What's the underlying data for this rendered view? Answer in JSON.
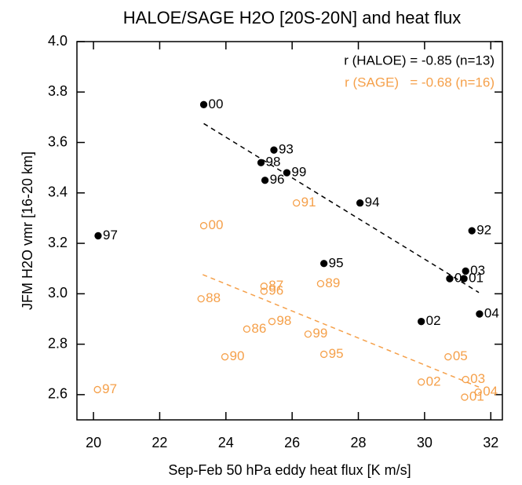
{
  "chart_data": {
    "type": "scatter",
    "title": "HALOE/SAGE H2O [20S-20N] and heat flux",
    "x_label": "Sep-Feb 50 hPa eddy heat flux [K m/s]",
    "y_label": "JFM H2O vmr [16-20 km]",
    "xlim": [
      19.5,
      32.35
    ],
    "ylim": [
      2.5,
      4.0
    ],
    "xticks": [
      20,
      22,
      24,
      26,
      28,
      30,
      32
    ],
    "yticks": [
      2.6,
      2.8,
      {
        "value": 3.0,
        "label": "3.0"
      },
      3.2,
      3.4,
      3.6,
      3.8,
      {
        "value": 4.0,
        "label": "4.0"
      }
    ],
    "annotations": [
      {
        "text": "r (HALOE) = -0.85 (n=13)",
        "color": "#000000"
      },
      {
        "text": "r (SAGE)   = -0.68 (n=16)",
        "color": "#f5a04a"
      }
    ],
    "series": [
      {
        "name": "HALOE",
        "color": "#000000",
        "marker": "filled",
        "x": [
          23.33,
          25.45,
          25.06,
          25.84,
          25.18,
          28.05,
          20.14,
          31.43,
          26.96,
          31.24,
          31.19,
          30.76,
          29.9,
          31.66
        ],
        "values": [
          3.75,
          3.57,
          3.52,
          3.48,
          3.45,
          3.36,
          3.23,
          3.25,
          3.12,
          3.09,
          3.06,
          3.06,
          2.89,
          2.92
        ],
        "labels": [
          "00",
          "93",
          "98",
          "99",
          "96",
          "94",
          "97",
          "92",
          "95",
          "03",
          "01",
          "0",
          "02",
          "04"
        ]
      },
      {
        "name": "SAGE",
        "color": "#f5a04a",
        "marker": "open",
        "x": [
          26.13,
          23.33,
          25.15,
          25.15,
          26.86,
          23.25,
          25.39,
          24.63,
          26.48,
          23.97,
          26.96,
          30.71,
          31.24,
          29.9,
          31.62,
          31.21,
          20.12
        ],
        "values": [
          3.36,
          3.27,
          3.03,
          3.01,
          3.04,
          2.98,
          2.89,
          2.86,
          2.84,
          2.75,
          2.76,
          2.75,
          2.66,
          2.65,
          2.61,
          2.59,
          2.62
        ],
        "labels": [
          "91",
          "00",
          "87",
          "96",
          "89",
          "88",
          "98",
          "86",
          "99",
          "90",
          "95",
          "05",
          "03",
          "02",
          "04",
          "01",
          "97"
        ]
      }
    ],
    "fit_lines": [
      {
        "color": "#000000",
        "x": [
          23.33,
          31.64
        ],
        "values": [
          3.675,
          3.005
        ]
      },
      {
        "color": "#f5a04a",
        "x": [
          23.3,
          31.64
        ],
        "values": [
          3.076,
          2.63
        ]
      }
    ]
  }
}
